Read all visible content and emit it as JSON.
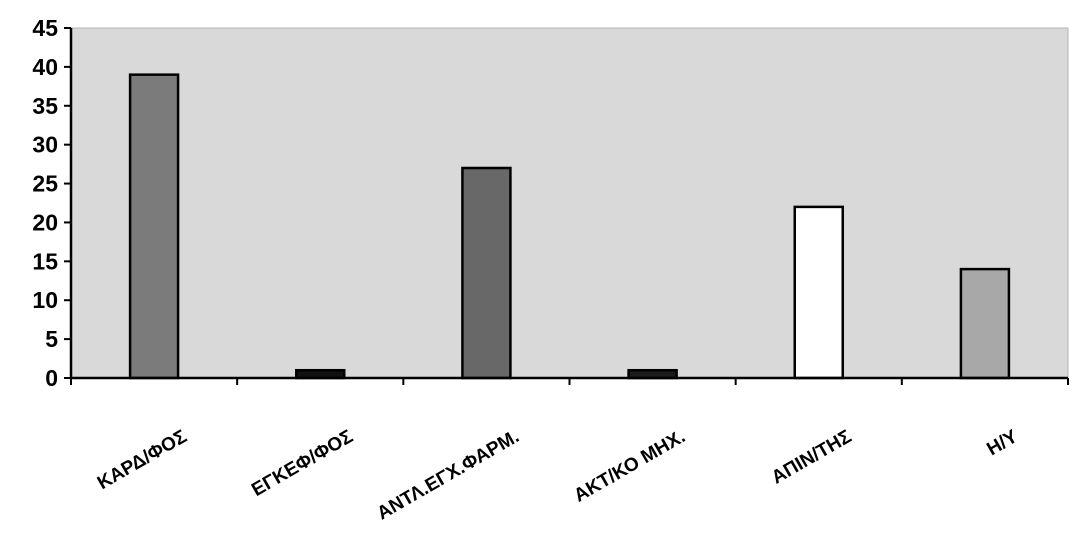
{
  "chart_data": {
    "type": "bar",
    "title": "",
    "xlabel": "",
    "ylabel": "",
    "categories": [
      "ΚΑΡΔ/ΦΟΣ",
      "ΕΓΚΕΦ/ΦΟΣ",
      "ΑΝΤΛ.ΕΓΧ.ΦΑΡΜ.",
      "ΑΚΤ/ΚΟ ΜΗΧ.",
      "ΑΠΙΝ/ΤΗΣ",
      "Η/Υ"
    ],
    "values": [
      39,
      1,
      27,
      1,
      22,
      14
    ],
    "bar_colors": [
      "#7b7b7b",
      "#111111",
      "#686868",
      "#1c1c1c",
      "#ffffff",
      "#a8a8a8"
    ],
    "ylim": [
      0,
      45
    ],
    "yticks": [
      "0",
      "5",
      "10",
      "15",
      "20",
      "25",
      "30",
      "35",
      "40",
      "45"
    ],
    "grid": false,
    "plot_background": "#d9d9d9",
    "legend": "none"
  }
}
